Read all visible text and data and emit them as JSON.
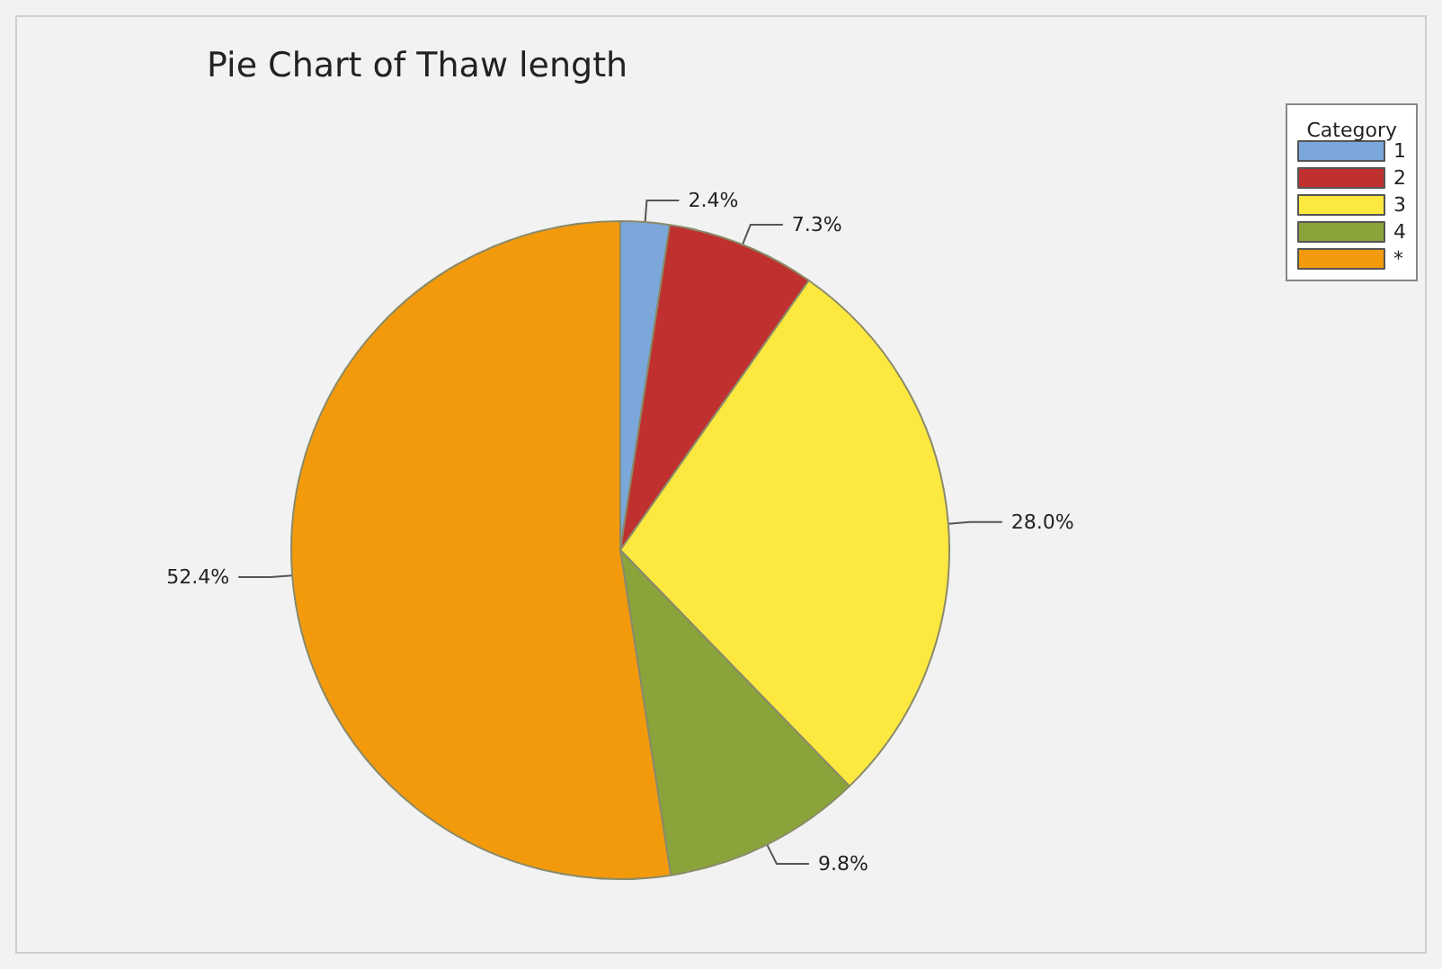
{
  "chart_data": {
    "type": "pie",
    "title": "Pie Chart of Thaw length",
    "legend_title": "Category",
    "legend": "top right",
    "categories": [
      "1",
      "2",
      "3",
      "4",
      "*"
    ],
    "values": [
      2.4,
      7.3,
      28.0,
      9.8,
      52.4
    ],
    "value_labels": [
      "2.4%",
      "7.3%",
      "28.0%",
      "9.8%",
      "52.4%"
    ],
    "colors": [
      "#7ba7db",
      "#c0302e",
      "#fde840",
      "#8aa33a",
      "#f39a0c"
    ]
  }
}
